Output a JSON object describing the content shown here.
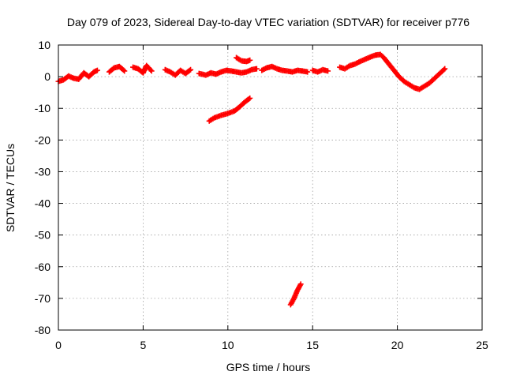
{
  "chart_data": {
    "type": "scatter",
    "title": "Day 079 of 2023, Sidereal Day-to-day VTEC variation (SDTVAR) for receiver p776",
    "xlabel": "GPS time / hours",
    "ylabel": "SDTVAR / TECUs",
    "xlim": [
      0,
      25
    ],
    "ylim": [
      -80,
      10
    ],
    "xticks": [
      "0",
      "5",
      "10",
      "15",
      "20",
      "25"
    ],
    "yticks": [
      "10",
      "0",
      "-10",
      "-20",
      "-30",
      "-40",
      "-50",
      "-60",
      "-70",
      "-80"
    ],
    "grid": true,
    "marker": "plus",
    "color": "#ff0000",
    "series": [
      {
        "segments": [
          [
            [
              0.0,
              -1.5
            ],
            [
              0.3,
              -1.0
            ],
            [
              0.6,
              0.2
            ],
            [
              0.9,
              -0.5
            ],
            [
              1.2,
              -0.8
            ],
            [
              1.5,
              1.2
            ],
            [
              1.8,
              0.0
            ],
            [
              2.1,
              1.5
            ],
            [
              2.3,
              2.0
            ]
          ],
          [
            [
              3.0,
              1.5
            ],
            [
              3.3,
              2.8
            ],
            [
              3.6,
              3.2
            ],
            [
              3.9,
              1.8
            ]
          ],
          [
            [
              4.4,
              3.0
            ],
            [
              4.7,
              2.5
            ],
            [
              5.0,
              1.2
            ],
            [
              5.2,
              3.5
            ],
            [
              5.5,
              1.8
            ]
          ],
          [
            [
              6.3,
              2.2
            ],
            [
              6.6,
              1.5
            ],
            [
              6.9,
              0.5
            ],
            [
              7.2,
              2.0
            ],
            [
              7.5,
              1.0
            ],
            [
              7.8,
              2.2
            ]
          ],
          [
            [
              8.3,
              1.0
            ],
            [
              8.7,
              0.5
            ],
            [
              9.0,
              1.2
            ],
            [
              9.3,
              0.8
            ],
            [
              9.6,
              1.5
            ],
            [
              9.9,
              2.0
            ],
            [
              10.2,
              1.8
            ],
            [
              10.5,
              1.5
            ],
            [
              10.8,
              1.2
            ],
            [
              11.1,
              1.5
            ],
            [
              11.4,
              2.2
            ],
            [
              11.7,
              2.5
            ]
          ],
          [
            [
              12.0,
              2.0
            ],
            [
              12.3,
              2.8
            ],
            [
              12.6,
              3.2
            ],
            [
              12.9,
              2.5
            ],
            [
              13.2,
              2.0
            ],
            [
              13.5,
              1.8
            ],
            [
              13.8,
              1.5
            ],
            [
              14.1,
              2.0
            ],
            [
              14.4,
              1.8
            ],
            [
              14.7,
              1.5
            ]
          ],
          [
            [
              15.0,
              2.0
            ],
            [
              15.3,
              1.5
            ],
            [
              15.6,
              2.2
            ],
            [
              15.9,
              1.8
            ]
          ],
          [
            [
              16.6,
              3.0
            ],
            [
              16.9,
              2.5
            ],
            [
              17.2,
              3.5
            ],
            [
              17.5,
              4.0
            ],
            [
              17.8,
              4.8
            ],
            [
              18.1,
              5.5
            ],
            [
              18.4,
              6.2
            ],
            [
              18.7,
              6.8
            ],
            [
              19.0,
              7.0
            ],
            [
              19.2,
              6.0
            ],
            [
              19.5,
              4.0
            ],
            [
              19.8,
              2.0
            ],
            [
              20.1,
              0.0
            ],
            [
              20.4,
              -1.5
            ],
            [
              20.7,
              -2.5
            ],
            [
              21.0,
              -3.5
            ],
            [
              21.3,
              -4.0
            ],
            [
              21.6,
              -3.0
            ],
            [
              21.9,
              -2.0
            ],
            [
              22.2,
              -0.5
            ],
            [
              22.5,
              1.0
            ],
            [
              22.8,
              2.5
            ]
          ],
          [
            [
              10.5,
              6.0
            ],
            [
              10.8,
              5.0
            ],
            [
              11.1,
              4.8
            ],
            [
              11.3,
              5.2
            ]
          ],
          [
            [
              8.9,
              -14.0
            ],
            [
              9.2,
              -13.0
            ],
            [
              9.6,
              -12.2
            ],
            [
              10.0,
              -11.6
            ],
            [
              10.4,
              -10.8
            ],
            [
              10.7,
              -9.5
            ],
            [
              11.0,
              -8.0
            ],
            [
              11.3,
              -6.8
            ]
          ],
          [
            [
              13.7,
              -72.0
            ],
            [
              13.9,
              -70.0
            ],
            [
              14.1,
              -67.5
            ],
            [
              14.3,
              -65.5
            ]
          ]
        ]
      }
    ]
  }
}
